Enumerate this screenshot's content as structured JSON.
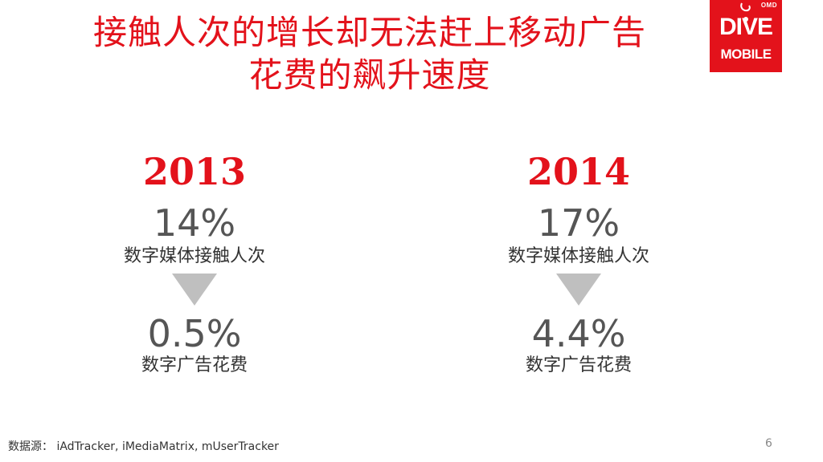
{
  "slide": {
    "title_line1": "接触人次的增长却无法赶上移动广告",
    "title_line2": "花费的飙升速度",
    "logo": {
      "top_text": "OMD",
      "middle_text": "DIVE",
      "bottom_text": "MOBILE",
      "background_color": "#e3121b"
    },
    "columns": [
      {
        "year": "2013",
        "reach_value": "14%",
        "reach_label": "数字媒体接触人次",
        "spend_value": "0.5%",
        "spend_label": "数字广告花费",
        "arrow_icon": "triangle-down-icon"
      },
      {
        "year": "2014",
        "reach_value": "17%",
        "reach_label": "数字媒体接触人次",
        "spend_value": "4.4%",
        "spend_label": "数字广告花费",
        "arrow_icon": "triangle-down-icon"
      }
    ],
    "source_text": "数据源： iAdTracker, iMediaMatrix, mUserTracker",
    "page_number": "6",
    "accent_color": "#e3121b",
    "arrow_color": "#bfbfbf"
  }
}
